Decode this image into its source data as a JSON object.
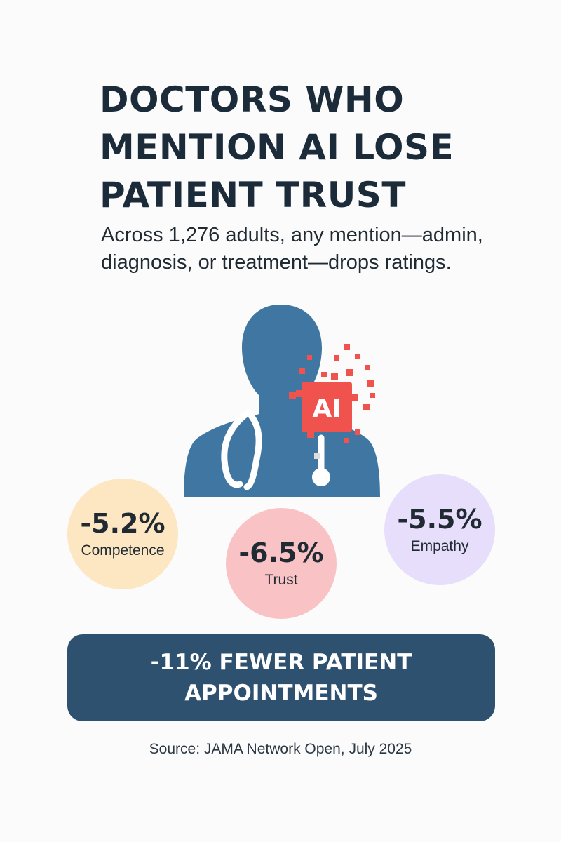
{
  "title_lines": [
    "DOCTORS WHO",
    "MENTION AI LOSE",
    "PATIENT TRUST"
  ],
  "subtitle": "Across 1,276 adults, any mention—admin, diagnosis, or treatment—drops ratings.",
  "figure": {
    "badge_text": "AI",
    "silhouette_color": "#3f76a2",
    "badge_color": "#f0524d",
    "icons": [
      "doctor-silhouette-icon",
      "stethoscope-icon",
      "ai-badge-icon"
    ]
  },
  "stats": [
    {
      "value": "-5.2%",
      "label": "Competence",
      "color": "#fde7c2"
    },
    {
      "value": "-6.5%",
      "label": "Trust",
      "color": "#f9c3c6"
    },
    {
      "value": "-5.5%",
      "label": "Empathy",
      "color": "#e7defb"
    }
  ],
  "banner": {
    "text": "-11% FEWER PATIENT APPOINTMENTS",
    "color": "#2f5170"
  },
  "source": "Source: JAMA Network Open, July 2025"
}
